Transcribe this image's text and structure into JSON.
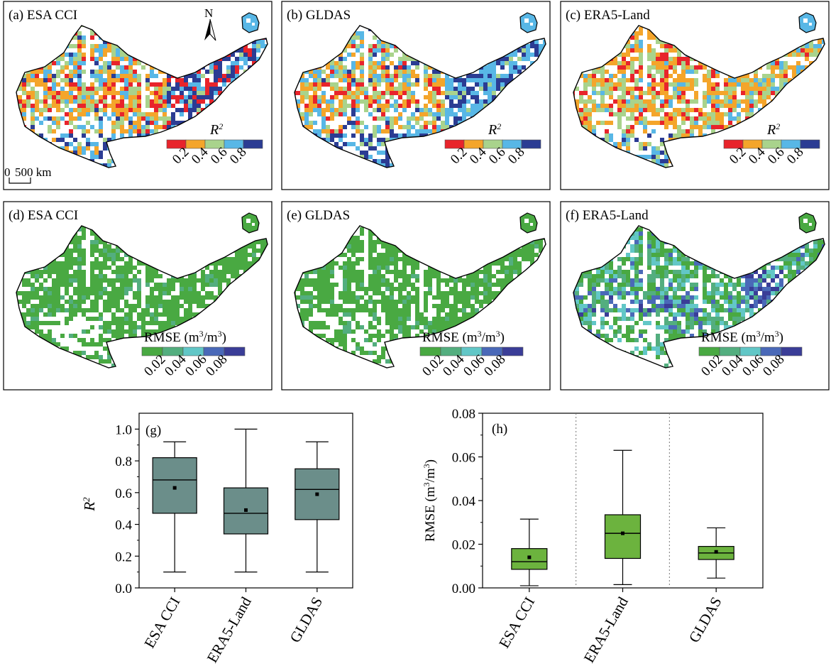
{
  "maps": [
    {
      "label": "(a) ESA CCI",
      "kind": "r2",
      "north": true,
      "scalebar": true
    },
    {
      "label": "(b) GLDAS",
      "kind": "r2"
    },
    {
      "label": "(c) ERA5-Land",
      "kind": "r2"
    },
    {
      "label": "(d) ESA CCI",
      "kind": "rmse"
    },
    {
      "label": "(e) GLDAS",
      "kind": "rmse"
    },
    {
      "label": "(f) ERA5-Land",
      "kind": "rmse"
    }
  ],
  "north_label": "N",
  "scalebar": {
    "zero": "0",
    "label": "500 km"
  },
  "legends": {
    "r2": {
      "title_base": "R",
      "title_sup": "2",
      "colors": [
        "#e8242b",
        "#f4a52b",
        "#a9d38c",
        "#58b7e6",
        "#2b3c93"
      ],
      "ticks": [
        "0.2",
        "0.4",
        "0.6",
        "0.8"
      ]
    },
    "rmse": {
      "title_prefix": "RMSE (m",
      "title_mid": "/m",
      "title_end": ")",
      "sup": "3",
      "colors": [
        "#49a942",
        "#53ae7f",
        "#62c7c7",
        "#4a69b8",
        "#3a3d97"
      ],
      "ticks": [
        "0.02",
        "0.04",
        "0.06",
        "0.08"
      ]
    }
  },
  "chart_data": [
    {
      "type": "box",
      "panel_label": "(g)",
      "categories": [
        "ESA CCI",
        "ERA5-Land",
        "GLDAS"
      ],
      "ylabel_base": "R",
      "ylabel_sup": "2",
      "ylim": [
        0.0,
        1.1
      ],
      "yticks": [
        "0.0",
        "0.2",
        "0.4",
        "0.6",
        "0.8",
        "1.0"
      ],
      "box_color": "#6b8e8a",
      "boxes": [
        {
          "min": 0.1,
          "q1": 0.47,
          "median": 0.68,
          "q3": 0.82,
          "max": 0.92,
          "mean": 0.63
        },
        {
          "min": 0.1,
          "q1": 0.34,
          "median": 0.47,
          "q3": 0.63,
          "max": 1.0,
          "mean": 0.49
        },
        {
          "min": 0.1,
          "q1": 0.43,
          "median": 0.62,
          "q3": 0.75,
          "max": 0.92,
          "mean": 0.59
        }
      ]
    },
    {
      "type": "box",
      "panel_label": "(h)",
      "categories": [
        "ESA CCI",
        "ERA5-Land",
        "GLDAS"
      ],
      "ylabel_prefix": "RMSE (m",
      "ylabel_mid": "/m",
      "ylabel_end": ")",
      "ylabel_sup": "3",
      "ylim": [
        0.0,
        0.08
      ],
      "yticks": [
        "0.00",
        "0.02",
        "0.04",
        "0.06",
        "0.08"
      ],
      "box_color": "#6cb33e",
      "boxes": [
        {
          "min": 0.001,
          "q1": 0.0085,
          "median": 0.012,
          "q3": 0.018,
          "max": 0.0315,
          "mean": 0.014
        },
        {
          "min": 0.0015,
          "q1": 0.0135,
          "median": 0.025,
          "q3": 0.0335,
          "max": 0.063,
          "mean": 0.025
        },
        {
          "min": 0.0045,
          "q1": 0.013,
          "median": 0.016,
          "q3": 0.019,
          "max": 0.0275,
          "mean": 0.0165
        }
      ]
    }
  ]
}
